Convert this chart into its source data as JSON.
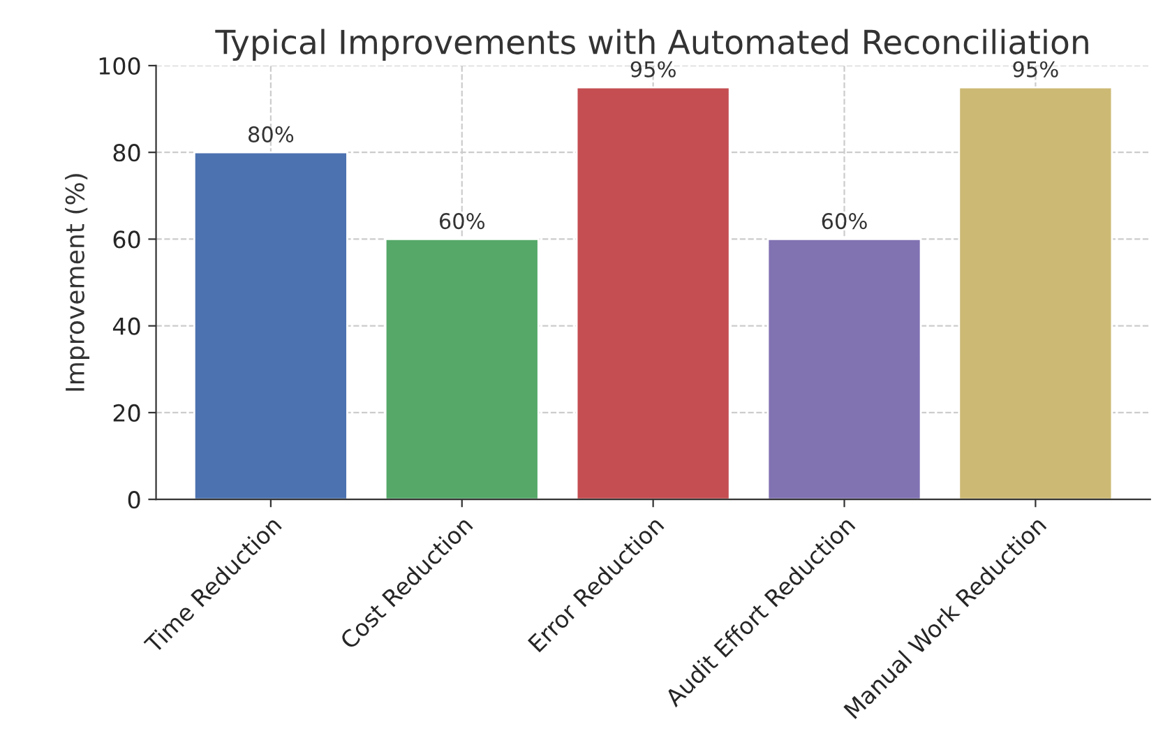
{
  "chart_data": {
    "type": "bar",
    "title": "Typical Improvements with Automated Reconciliation",
    "ylabel": "Improvement (%)",
    "categories": [
      "Time Reduction",
      "Cost Reduction",
      "Error Reduction",
      "Audit Effort Reduction",
      "Manual Work Reduction"
    ],
    "values": [
      80,
      60,
      95,
      60,
      95
    ],
    "colors": [
      "#4c72b0",
      "#55a868",
      "#c44e52",
      "#8172b2",
      "#ccb974"
    ],
    "value_labels": [
      "80%",
      "60%",
      "95%",
      "60%",
      "95%"
    ],
    "ylim": [
      0,
      100
    ],
    "yticks": [
      0,
      20,
      40,
      60,
      80,
      100
    ],
    "grid": true,
    "line_style": "dashed"
  }
}
